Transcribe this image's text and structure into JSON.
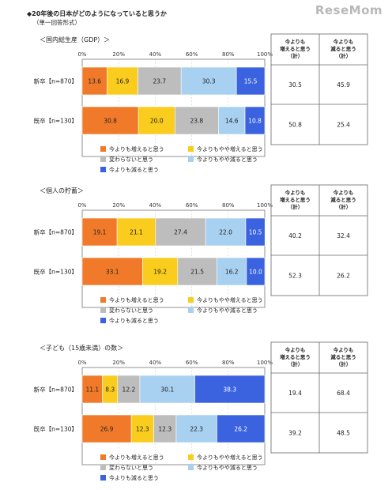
{
  "header": {
    "title": "◆20年後の日本がどのようになっていると思うか",
    "subtitle": "（単一回答形式）",
    "brand": "ReseMom"
  },
  "colors": {
    "up": "#f07a2a",
    "slight_up": "#f9cc1d",
    "same": "#bdbdbd",
    "slight_down": "#a8d0f0",
    "down": "#3b63e0"
  },
  "chart_data": [
    {
      "type": "bar",
      "orientation": "horizontal",
      "stacked": true,
      "title": "＜国内総生産（GDP）＞",
      "categories": [
        "新卒【n=870】",
        "既卒【n=130】"
      ],
      "xlim": [
        0,
        100
      ],
      "xticks": [
        "0%",
        "20%",
        "40%",
        "60%",
        "80%",
        "100%"
      ],
      "series": [
        {
          "name": "今よりも増えると思う",
          "values": [
            13.6,
            30.8
          ]
        },
        {
          "name": "今よりもやや増えると思う",
          "values": [
            16.9,
            20.0
          ]
        },
        {
          "name": "変わらないと思う",
          "values": [
            23.7,
            23.8
          ]
        },
        {
          "name": "今よりもやや減ると思う",
          "values": [
            30.3,
            14.6
          ]
        },
        {
          "name": "今よりも減ると思う",
          "values": [
            15.5,
            10.8
          ]
        }
      ],
      "table": {
        "headers": [
          "今よりも\n増えると思う\n（計）",
          "今よりも\n減ると思う\n（計）"
        ],
        "rows": [
          [
            "30.5",
            "45.9"
          ],
          [
            "50.8",
            "25.4"
          ]
        ]
      }
    },
    {
      "type": "bar",
      "orientation": "horizontal",
      "stacked": true,
      "title": "＜個人の貯蓄＞",
      "categories": [
        "新卒【n=870】",
        "既卒【n=130】"
      ],
      "xlim": [
        0,
        100
      ],
      "xticks": [
        "0%",
        "20%",
        "40%",
        "60%",
        "80%",
        "100%"
      ],
      "series": [
        {
          "name": "今よりも増えると思う",
          "values": [
            19.1,
            33.1
          ]
        },
        {
          "name": "今よりもやや増えると思う",
          "values": [
            21.1,
            19.2
          ]
        },
        {
          "name": "変わらないと思う",
          "values": [
            27.4,
            21.5
          ]
        },
        {
          "name": "今よりもやや減ると思う",
          "values": [
            22.0,
            16.2
          ]
        },
        {
          "name": "今よりも減ると思う",
          "values": [
            10.5,
            10.0
          ]
        }
      ],
      "table": {
        "headers": [
          "今よりも\n増えると思う\n（計）",
          "今よりも\n減ると思う\n（計）"
        ],
        "rows": [
          [
            "40.2",
            "32.4"
          ],
          [
            "52.3",
            "26.2"
          ]
        ]
      }
    },
    {
      "type": "bar",
      "orientation": "horizontal",
      "stacked": true,
      "title": "＜子ども（15歳未満）の数＞",
      "categories": [
        "新卒【n=870】",
        "既卒【n=130】"
      ],
      "xlim": [
        0,
        100
      ],
      "xticks": [
        "0%",
        "20%",
        "40%",
        "60%",
        "80%",
        "100%"
      ],
      "series": [
        {
          "name": "今よりも増えると思う",
          "values": [
            11.1,
            26.9
          ]
        },
        {
          "name": "今よりもやや増えると思う",
          "values": [
            8.3,
            12.3
          ]
        },
        {
          "name": "変わらないと思う",
          "values": [
            12.2,
            12.3
          ]
        },
        {
          "name": "今よりもやや減ると思う",
          "values": [
            30.1,
            22.3
          ]
        },
        {
          "name": "今よりも減ると思う",
          "values": [
            38.3,
            26.2
          ]
        }
      ],
      "table": {
        "headers": [
          "今よりも\n増えると思う\n（計）",
          "今よりも\n減ると思う\n（計）"
        ],
        "rows": [
          [
            "19.4",
            "68.4"
          ],
          [
            "39.2",
            "48.5"
          ]
        ]
      }
    }
  ]
}
